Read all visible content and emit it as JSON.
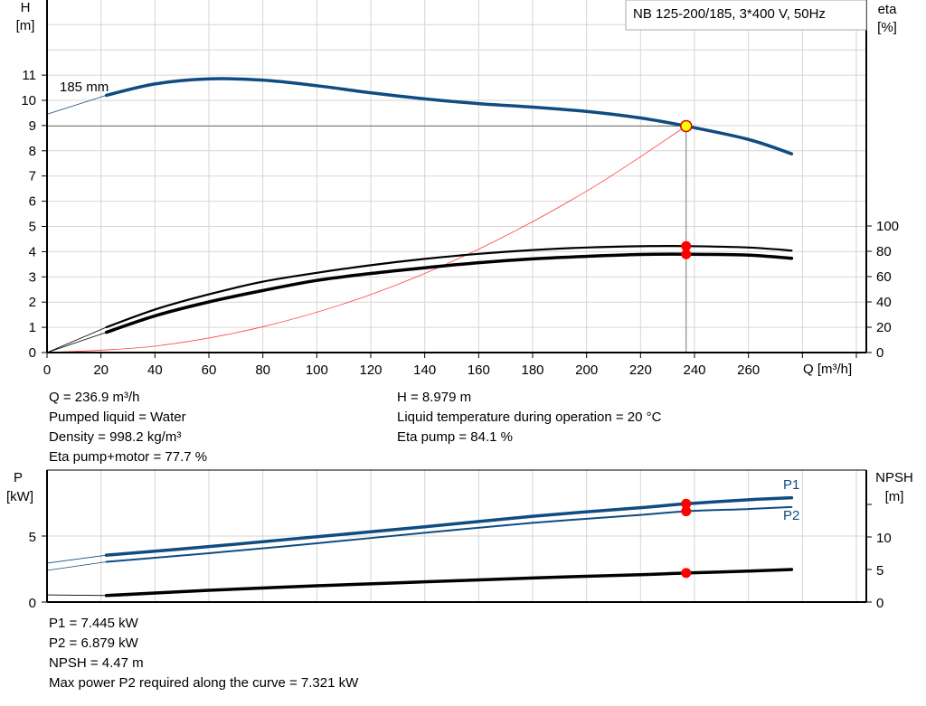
{
  "chart_data": [
    {
      "type": "line",
      "title": "NB 125-200/185, 3*400 V, 50Hz",
      "xlabel": "Q [m³/h]",
      "ylabel_left": [
        "H",
        "[m]"
      ],
      "ylabel_right": [
        "eta",
        "[%]"
      ],
      "xlim": [
        0,
        300
      ],
      "ylim_left": [
        0,
        14
      ],
      "ylim_right": [
        0,
        100
      ],
      "x_ticks": [
        0,
        20,
        40,
        60,
        80,
        100,
        120,
        140,
        160,
        180,
        200,
        220,
        240,
        260
      ],
      "y_ticks_left": [
        0,
        1,
        2,
        3,
        4,
        5,
        6,
        7,
        8,
        9,
        10,
        11
      ],
      "y_ticks_right": [
        0,
        20,
        40,
        60,
        80,
        100
      ],
      "grid": true,
      "curve_label": "185 mm",
      "series": [
        {
          "key": "H",
          "axis": "left",
          "color": "#0f4c81",
          "x": [
            0,
            22,
            40,
            60,
            80,
            100,
            120,
            140,
            160,
            180,
            200,
            220,
            236.9,
            260,
            276
          ],
          "y": [
            9.45,
            10.2,
            10.65,
            10.85,
            10.8,
            10.58,
            10.3,
            10.06,
            9.87,
            9.73,
            9.56,
            9.3,
            8.979,
            8.45,
            7.88
          ]
        },
        {
          "key": "eta_pump",
          "axis": "right",
          "color": "#000000",
          "x": [
            0,
            22,
            40,
            60,
            80,
            100,
            120,
            140,
            160,
            180,
            200,
            220,
            236.9,
            260,
            276
          ],
          "y": [
            0,
            20,
            34,
            46,
            56,
            63,
            69,
            74,
            78,
            81,
            83,
            84,
            84.1,
            83,
            80.6
          ]
        },
        {
          "key": "eta_pump_motor",
          "axis": "right",
          "color": "#000000",
          "x": [
            0,
            22,
            40,
            60,
            80,
            100,
            120,
            140,
            160,
            180,
            200,
            220,
            236.9,
            260,
            276
          ],
          "y": [
            0,
            16,
            29,
            40,
            49,
            57,
            62.5,
            67,
            71,
            74,
            76,
            77.5,
            77.7,
            77,
            74.5
          ]
        },
        {
          "key": "system_curve",
          "axis": "left",
          "color": "#ff4040",
          "x": [
            0,
            40,
            80,
            120,
            160,
            200,
            236.9
          ],
          "y": [
            0,
            0.256,
            1.024,
            2.3,
            4.1,
            6.4,
            8.979
          ]
        }
      ],
      "duty_point": {
        "Q": 236.9,
        "H": 8.979,
        "eta_pump": 84.1,
        "eta_pump_motor": 77.7
      }
    },
    {
      "type": "line",
      "xlim": [
        0,
        300
      ],
      "ylabel_left": [
        "P",
        "[kW]"
      ],
      "ylabel_right": [
        "NPSH",
        "[m]"
      ],
      "ylim_left": [
        0,
        10
      ],
      "ylim_right": [
        0,
        20
      ],
      "y_ticks_left": [
        0,
        5
      ],
      "y_ticks_right": [
        0,
        5,
        10
      ],
      "grid": true,
      "series": [
        {
          "name": "P1",
          "axis": "left",
          "color": "#0f4c81",
          "x": [
            0,
            22,
            60,
            100,
            140,
            180,
            220,
            236.9,
            260,
            276
          ],
          "y": [
            2.95,
            3.55,
            4.2,
            4.95,
            5.7,
            6.5,
            7.15,
            7.445,
            7.75,
            7.9
          ]
        },
        {
          "name": "P2",
          "axis": "left",
          "color": "#0f4c81",
          "x": [
            0,
            22,
            60,
            100,
            140,
            180,
            220,
            236.9,
            260,
            276
          ],
          "y": [
            2.4,
            3.05,
            3.7,
            4.45,
            5.25,
            6.0,
            6.6,
            6.879,
            7.05,
            7.2
          ]
        },
        {
          "key": "NPSH",
          "axis": "right",
          "color": "#000000",
          "x": [
            0,
            22,
            60,
            100,
            140,
            180,
            220,
            236.9,
            260,
            276
          ],
          "y": [
            1.1,
            1.0,
            1.8,
            2.5,
            3.1,
            3.7,
            4.2,
            4.47,
            4.75,
            5.0
          ]
        }
      ],
      "duty_point": {
        "Q": 236.9,
        "P1": 7.445,
        "P2": 6.879,
        "NPSH": 4.47
      }
    }
  ],
  "colors": {
    "curve_blue": "#0f4c81",
    "duty_marker": "#ff0000",
    "operating_point_fill": "#ffff00",
    "grid": "#d6d6d6"
  },
  "info_top": {
    "left": [
      "Q = 236.9 m³/h",
      "Pumped liquid = Water",
      "Density = 998.2 kg/m³",
      "Eta pump+motor = 77.7 %"
    ],
    "right": [
      "H = 8.979 m",
      "Liquid temperature during operation = 20 °C",
      "Eta pump = 84.1 %"
    ]
  },
  "info_bottom": [
    "P1 = 7.445 kW",
    "P2 = 6.879 kW",
    "NPSH = 4.47 m",
    "Max power P2 required along the curve = 7.321 kW"
  ]
}
